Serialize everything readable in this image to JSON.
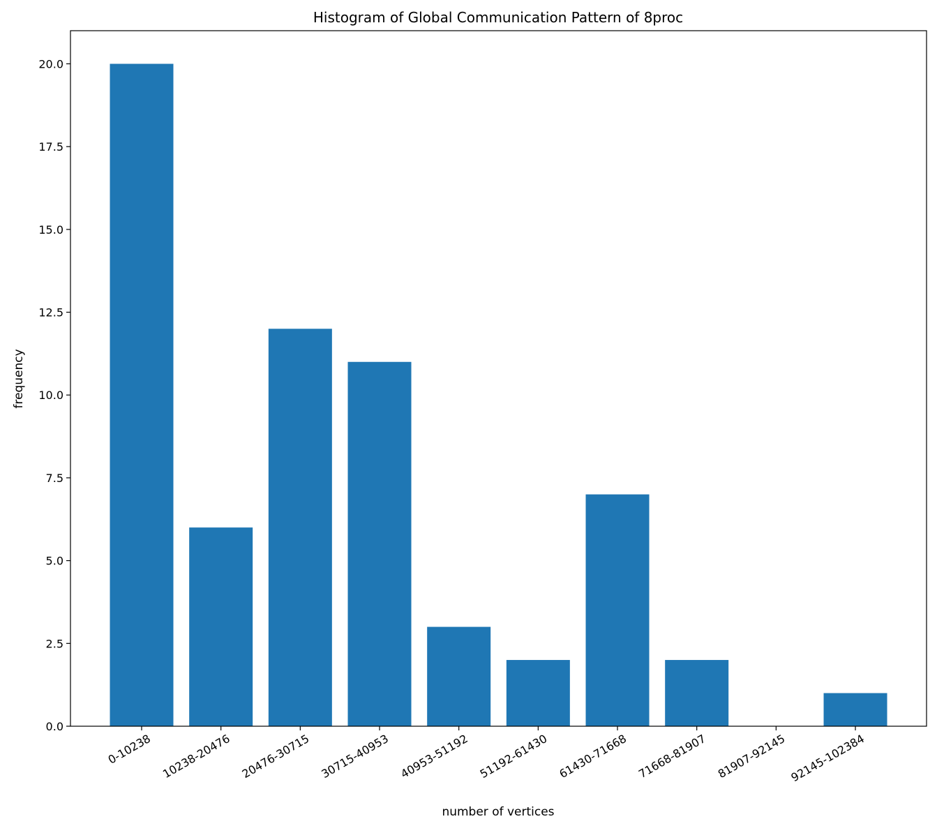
{
  "chart_data": {
    "type": "bar",
    "title": "Histogram of Global Communication Pattern of 8proc",
    "xlabel": "number of vertices",
    "ylabel": "frequency",
    "categories": [
      "0-10238",
      "10238-20476",
      "20476-30715",
      "30715-40953",
      "40953-51192",
      "51192-61430",
      "61430-71668",
      "71668-81907",
      "81907-92145",
      "92145-102384"
    ],
    "values": [
      20,
      6,
      12,
      11,
      3,
      2,
      7,
      2,
      0,
      1
    ],
    "ylim": [
      0,
      21
    ],
    "yticks": [
      0,
      2.5,
      5,
      7.5,
      10,
      12.5,
      15,
      17.5,
      20
    ],
    "ytick_labels": [
      "0.0",
      "2.5",
      "5.0",
      "7.5",
      "10.0",
      "12.5",
      "15.0",
      "17.5",
      "20.0"
    ],
    "grid": false,
    "bar_color": "#1f77b4"
  }
}
